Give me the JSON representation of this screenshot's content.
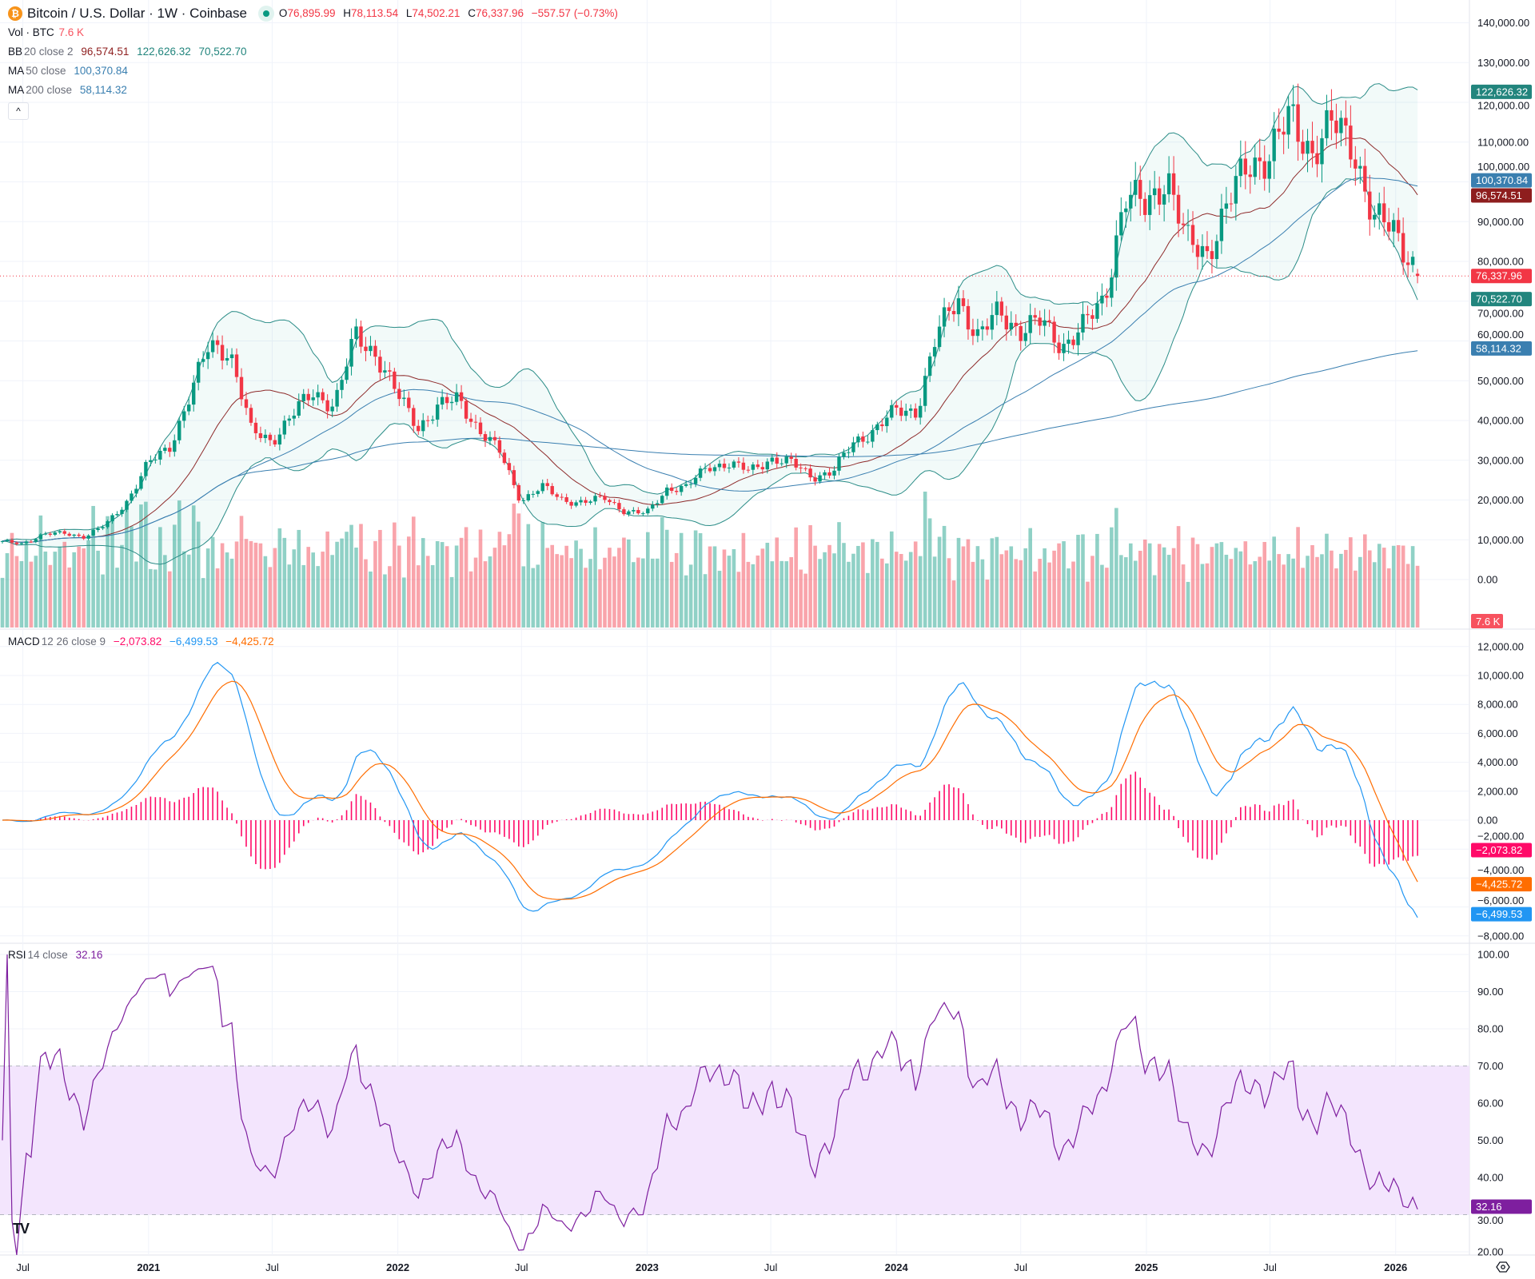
{
  "header": {
    "symbol_icon": "bitcoin-icon",
    "title": "Bitcoin / U.S. Dollar · 1W · Coinbase",
    "ohlc": {
      "o_label": "O",
      "o": "76,895.99",
      "h_label": "H",
      "h": "78,113.54",
      "l_label": "L",
      "l": "74,502.21",
      "c_label": "C",
      "c": "76,337.96",
      "change": "−557.57 (−0.73%)"
    }
  },
  "indicators": {
    "vol": {
      "name": "Vol · BTC",
      "value": "7.6 K"
    },
    "bb": {
      "name": "BB",
      "params": "20 close 2",
      "basis": "96,574.51",
      "upper": "122,626.32",
      "lower": "70,522.70"
    },
    "ma50": {
      "name": "MA",
      "params": "50 close",
      "value": "100,370.84"
    },
    "ma200": {
      "name": "MA",
      "params": "200 close",
      "value": "58,114.32"
    },
    "macd": {
      "name": "MACD",
      "params": "12 26 close 9",
      "hist": "−2,073.82",
      "macd": "−6,499.53",
      "signal": "−4,425.72"
    },
    "rsi": {
      "name": "RSI",
      "params": "14 close",
      "value": "32.16"
    }
  },
  "collapse_button": "^",
  "logo": "TV",
  "colors": {
    "up": "#089981",
    "down": "#f23645",
    "bb_basis": "#8e2b2b",
    "bb_band": "#2a8c87",
    "ma50": "#3a7fb0",
    "ma200": "#3a7fb0",
    "macd": "#2196f3",
    "signal": "#ff6d00",
    "hist": "#ff0a68",
    "rsi": "#7e1f9f",
    "rsi_band": "#f3e5fd"
  },
  "chart_data": {
    "type": "candlestick",
    "interval": "1W",
    "monthly_closes": {
      "start": "2020-05",
      "values": [
        9450,
        9100,
        11300,
        11650,
        10780,
        13800,
        19700,
        29000,
        33100,
        45200,
        58800,
        57700,
        37300,
        35000,
        41500,
        47100,
        43800,
        61300,
        57000,
        46300,
        38500,
        43200,
        45500,
        37700,
        31800,
        19900,
        23300,
        20000,
        19400,
        20500,
        17200,
        16500,
        23100,
        23100,
        28500,
        29200,
        27200,
        30500,
        29200,
        26000,
        27000,
        34600,
        37700,
        42300,
        42600,
        61200,
        71300,
        60600,
        67500,
        62700,
        64600,
        59000,
        63300,
        70300,
        96400,
        93400,
        102400,
        84400,
        82500,
        94200,
        104600,
        107100,
        115700,
        108200,
        114000,
        109500,
        90400,
        87500,
        78600
      ]
    },
    "last_candle": {
      "date": "2026-02-02",
      "open": 76895.99,
      "high": 78113.54,
      "low": 74502.21,
      "close": 76337.96,
      "volume_k": 7.6
    },
    "price_axis": {
      "min": 0,
      "max": 140000,
      "ticks": [
        "0.00",
        "10,000.00",
        "20,000.00",
        "30,000.00",
        "40,000.00",
        "50,000.00",
        "60,000.00",
        "70,000.00",
        "80,000.00",
        "90,000.00",
        "100,000.00",
        "110,000.00",
        "120,000.00",
        "130,000.00",
        "140,000.00"
      ]
    },
    "price_badges": [
      {
        "label": "122,626.32",
        "value": 122626.32,
        "color": "#22857d"
      },
      {
        "label": "100,370.84",
        "value": 100370.84,
        "color": "#3a7fb0"
      },
      {
        "label": "96,574.51",
        "value": 96574.51,
        "color": "#8e1e1e"
      },
      {
        "label": "76,337.96",
        "value": 76337.96,
        "color": "#f23645"
      },
      {
        "label": "70,522.70",
        "value": 70522.7,
        "color": "#22857d"
      },
      {
        "label": "58,114.32",
        "value": 58114.32,
        "color": "#3a7fb0"
      }
    ],
    "volume_badge": {
      "label": "7.6 K",
      "color": "#f7525f"
    },
    "macd_axis": {
      "min": -8000,
      "max": 12000,
      "ticks": [
        "−8,000.00",
        "−6,000.00",
        "−4,000.00",
        "−2,000.00",
        "0.00",
        "2,000.00",
        "4,000.00",
        "6,000.00",
        "8,000.00",
        "10,000.00",
        "12,000.00"
      ]
    },
    "macd_badges": [
      {
        "label": "−2,073.82",
        "value": -2073.82,
        "color": "#ff0a68"
      },
      {
        "label": "−4,425.72",
        "value": -4425.72,
        "color": "#ff6d00"
      },
      {
        "label": "−6,499.53",
        "value": -6499.53,
        "color": "#2196f3"
      }
    ],
    "rsi_axis": {
      "min": 20,
      "max": 100,
      "ticks": [
        "20.00",
        "30.00",
        "40.00",
        "50.00",
        "60.00",
        "70.00",
        "80.00",
        "90.00",
        "100.00"
      ],
      "upper_band": 70,
      "lower_band": 30
    },
    "rsi_badge": {
      "label": "32.16",
      "value": 32.16,
      "color": "#7e1f9f"
    },
    "time_axis": [
      {
        "label": "Jul",
        "date": "2020-07-01"
      },
      {
        "label": "2021",
        "date": "2021-01-01"
      },
      {
        "label": "Jul",
        "date": "2021-07-01"
      },
      {
        "label": "2022",
        "date": "2022-01-01"
      },
      {
        "label": "Jul",
        "date": "2022-07-01"
      },
      {
        "label": "2023",
        "date": "2023-01-01"
      },
      {
        "label": "Jul",
        "date": "2023-07-01"
      },
      {
        "label": "2024",
        "date": "2024-01-01"
      },
      {
        "label": "Jul",
        "date": "2024-07-01"
      },
      {
        "label": "2025",
        "date": "2025-01-01"
      },
      {
        "label": "Jul",
        "date": "2025-07-01"
      },
      {
        "label": "2026",
        "date": "2026-01-01"
      }
    ],
    "grid": true
  }
}
